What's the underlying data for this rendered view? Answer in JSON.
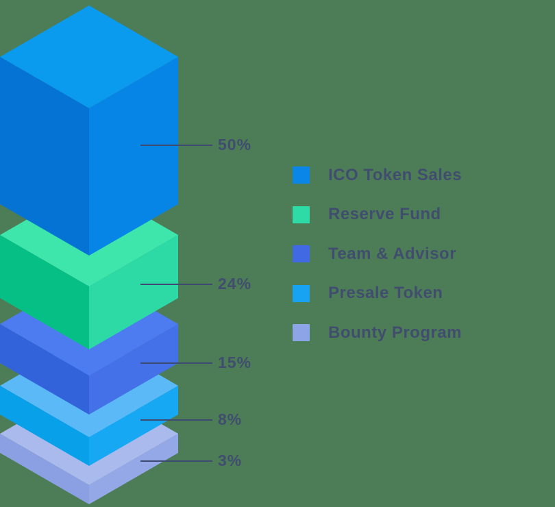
{
  "background_color": "#4d7d57",
  "text_color": "#414d6e",
  "leader_line_color": "#3e4a70",
  "chart_data": {
    "type": "bar",
    "subtype": "isometric-stacked-distribution",
    "title": "",
    "categories": [
      "ICO Token Sales",
      "Reserve Fund",
      "Team & Advisor",
      "Presale Token",
      "Bounty Program"
    ],
    "values": [
      50,
      24,
      15,
      8,
      3
    ],
    "unit": "%",
    "legend_position": "right",
    "layers": [
      {
        "name": "ICO Token Sales",
        "value": 50,
        "label": "50%",
        "legend_color": "#0a86e8",
        "face_top": "#0a9bee",
        "face_left": "#0473d4",
        "face_right": "#0685e6"
      },
      {
        "name": "Reserve Fund",
        "value": 24,
        "label": "24%",
        "legend_color": "#2edba6",
        "face_top": "#3ee6ac",
        "face_left": "#06bf85",
        "face_right": "#2dd9a4"
      },
      {
        "name": "Team & Advisor",
        "value": 15,
        "label": "15%",
        "legend_color": "#4169e4",
        "face_top": "#4c7cf0",
        "face_left": "#3363da",
        "face_right": "#4470e8"
      },
      {
        "name": "Presale Token",
        "value": 8,
        "label": "8%",
        "legend_color": "#18a3f2",
        "face_top": "#5cb9f7",
        "face_left": "#08a0e8",
        "face_right": "#16a8f2"
      },
      {
        "name": "Bounty Program",
        "value": 3,
        "label": "3%",
        "legend_color": "#8da4e6",
        "face_top": "#abbaec",
        "face_left": "#8ba0e2",
        "face_right": "#94a8e8"
      }
    ]
  }
}
